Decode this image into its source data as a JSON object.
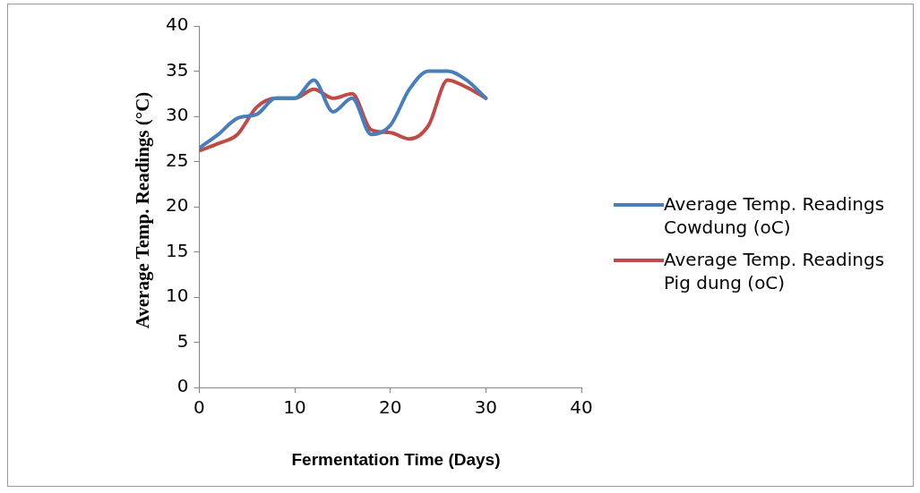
{
  "chart_data": {
    "type": "line",
    "xlabel": "Fermentation Time (Days)",
    "ylabel": "Average Temp. Readings (°C)",
    "x": [
      0,
      2,
      4,
      6,
      8,
      10,
      12,
      14,
      16,
      18,
      20,
      22,
      24,
      26,
      28,
      30
    ],
    "series": [
      {
        "name": "Average Temp. Readings Cowdung (oC)",
        "color": "#4a7ebb",
        "values": [
          26.5,
          28,
          29.8,
          30.2,
          32,
          32,
          34,
          30.5,
          32,
          28,
          29,
          33,
          35,
          35,
          34,
          32
        ]
      },
      {
        "name": "Average Temp. Readings Pig dung (oC)",
        "color": "#be4b48",
        "values": [
          26.2,
          27,
          28,
          31,
          32,
          32,
          33,
          32,
          32.5,
          28.5,
          28.2,
          27.5,
          29,
          34,
          33.2,
          32
        ]
      }
    ],
    "xlim": [
      0,
      40
    ],
    "xticks": [
      0,
      10,
      20,
      30,
      40
    ],
    "ylim": [
      0,
      40
    ],
    "yticks": [
      0,
      5,
      10,
      15,
      20,
      25,
      30,
      35,
      40
    ],
    "grid": false,
    "legend": "right",
    "marker": "none",
    "line_style": "solid"
  }
}
